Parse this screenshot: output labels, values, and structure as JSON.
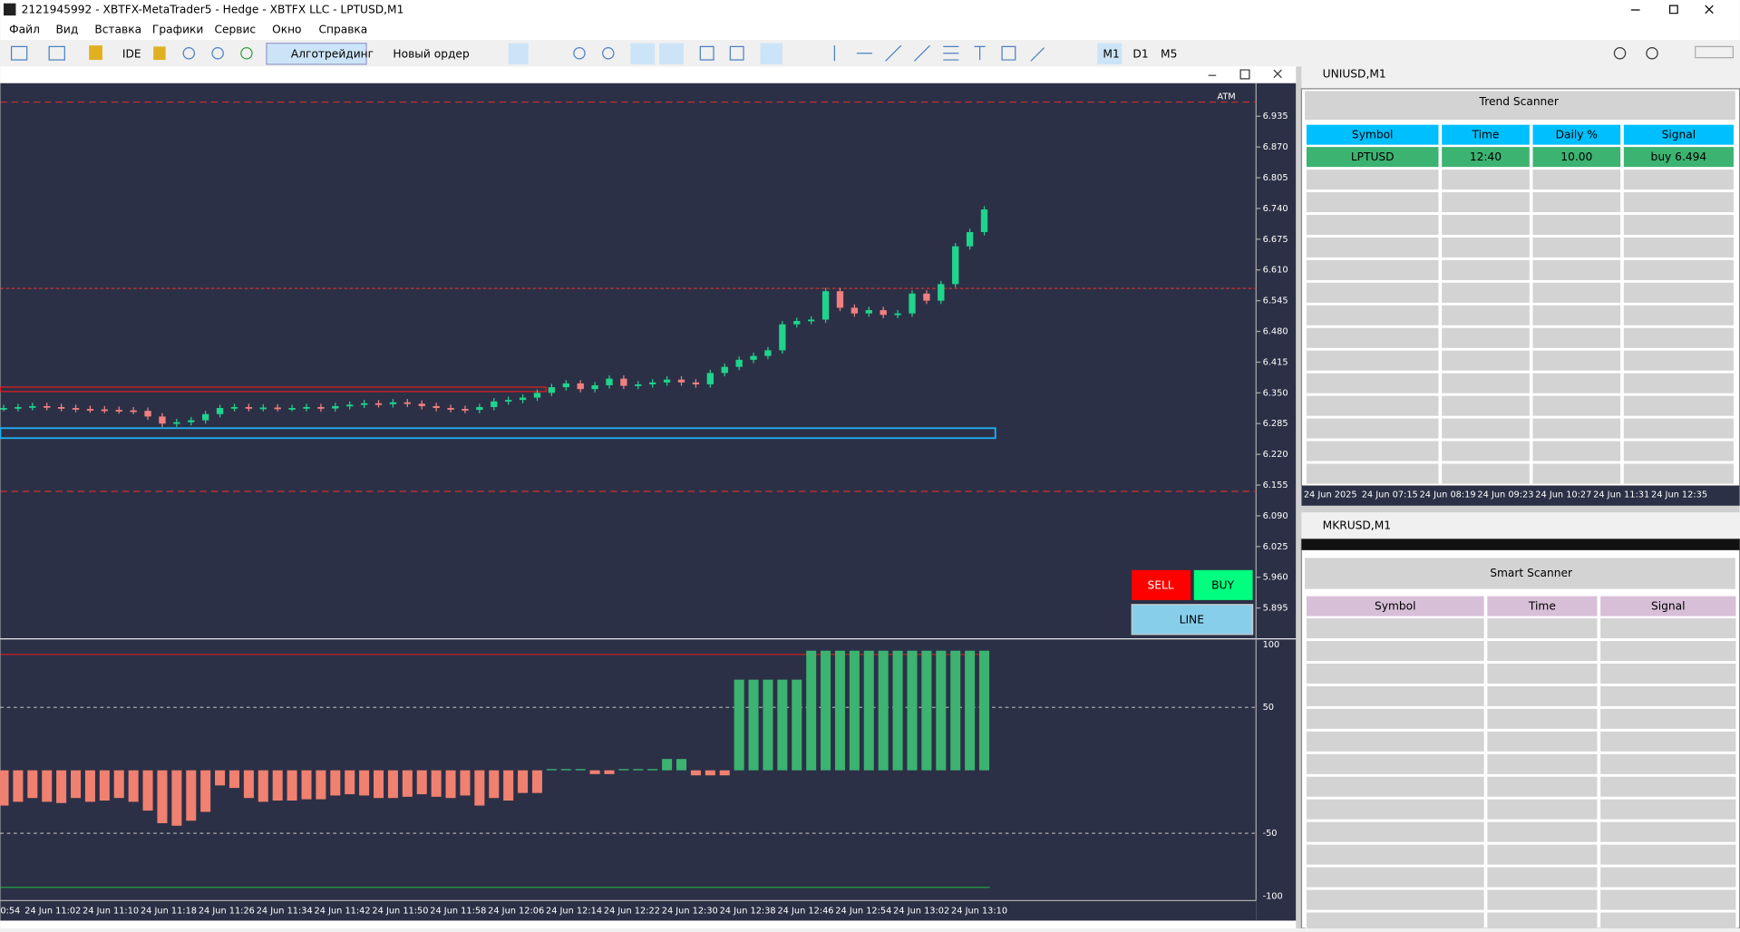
{
  "window": {
    "title": "2121945992 - XBTFX-MetaTrader5 - Hedge - XBTFX LLC - LPTUSD,M1",
    "menu": [
      "Файл",
      "Вид",
      "Вставка",
      "Графики",
      "Сервис",
      "Окно",
      "Справка"
    ],
    "toolbar": [
      "IDE",
      "Алготрейдинг",
      "Новый ордер",
      "M1",
      "D1",
      "M5"
    ]
  },
  "main_chart": {
    "label": "ATM",
    "ylim": [
      5.832,
      7.005
    ],
    "yticks": [
      6.935,
      {
        "value": 6.87,
        "label": "6.870"
      },
      6.805,
      {
        "value": 6.74,
        "label": "6.740"
      },
      6.675,
      {
        "value": 6.61,
        "label": "6.610"
      },
      6.545,
      {
        "value": 6.48,
        "label": "6.480"
      },
      6.415,
      {
        "value": 6.35,
        "label": "6.350"
      },
      6.285,
      {
        "value": 6.22,
        "label": "6.220"
      },
      6.155,
      {
        "value": 6.09,
        "label": "6.090"
      },
      6.025,
      {
        "value": 5.96,
        "label": "5.960"
      },
      5.895
    ],
    "closes": [
      6.318,
      6.32,
      6.322,
      6.32,
      6.318,
      6.316,
      6.315,
      6.314,
      6.313,
      6.312,
      6.3,
      6.285,
      6.288,
      6.292,
      6.305,
      6.318,
      6.32,
      6.318,
      6.319,
      6.318,
      6.318,
      6.32,
      6.317,
      6.322,
      6.325,
      6.328,
      6.326,
      6.33,
      6.327,
      6.322,
      6.318,
      6.316,
      6.314,
      6.32,
      6.332,
      6.335,
      6.34,
      6.35,
      6.362,
      6.37,
      6.358,
      6.366,
      6.38,
      6.365,
      6.368,
      6.372,
      6.378,
      6.372,
      6.368,
      6.392,
      6.405,
      6.42,
      6.428,
      6.44,
      6.495,
      6.502,
      6.505,
      6.565,
      6.53,
      6.518,
      6.525,
      6.515,
      6.518,
      6.56,
      6.545,
      6.58,
      6.66,
      6.69,
      6.738
    ],
    "time_labels": [
      "0:54",
      "24 Jun 11:02",
      "24 Jun 11:10",
      "24 Jun 11:18",
      "24 Jun 11:26",
      "24 Jun 11:34",
      "24 Jun 11:42",
      "24 Jun 11:50",
      "24 Jun 11:58",
      "24 Jun 12:06",
      "24 Jun 12:14",
      "24 Jun 12:22",
      "24 Jun 12:30",
      "24 Jun 12:38",
      "24 Jun 12:46",
      "24 Jun 12:54",
      "24 Jun 13:02",
      "24 Jun 13:10"
    ]
  },
  "indicator": {
    "ylim": [
      -103.5,
      103.5
    ],
    "yticks": [
      100,
      50,
      -50,
      -100
    ],
    "values": [
      -28,
      -25,
      -22,
      -25,
      -26,
      -22,
      -25,
      -24,
      -22,
      -25,
      -32,
      -42,
      -44,
      -40,
      -33,
      -12,
      -14,
      -22,
      -25,
      -24,
      -24,
      -23,
      -23,
      -20,
      -19,
      -20,
      -22,
      -22,
      -21,
      -19,
      -21,
      -22,
      -20,
      -28,
      -22,
      -24,
      -18,
      -18,
      1,
      1,
      1,
      -3,
      -3,
      1,
      1,
      1,
      9,
      9,
      -4,
      -4,
      -4,
      72,
      72,
      72,
      72,
      72,
      95,
      95,
      95,
      95,
      95,
      95,
      95,
      95,
      95,
      95,
      95,
      95,
      95
    ]
  },
  "buttons": {
    "sell": "SELL",
    "buy": "BUY",
    "line": "LINE"
  },
  "trend_scanner": {
    "window": "UNIUSD,M1",
    "title": "Trend Scanner",
    "columns": [
      "Symbol",
      "Time",
      "Daily %",
      "Signal"
    ],
    "rows": [
      [
        "LPTUSD",
        "12:40",
        "10.00",
        "buy 6.494"
      ]
    ],
    "time_labels": [
      "24 Jun 2025",
      "24 Jun 07:15",
      "24 Jun 08:19",
      "24 Jun 09:23",
      "24 Jun 10:27",
      "24 Jun 11:31",
      "24 Jun 12:35"
    ]
  },
  "smart_scanner": {
    "window": "MKRUSD,M1",
    "title": "Smart Scanner",
    "columns": [
      "Symbol",
      "Time",
      "Signal"
    ]
  }
}
